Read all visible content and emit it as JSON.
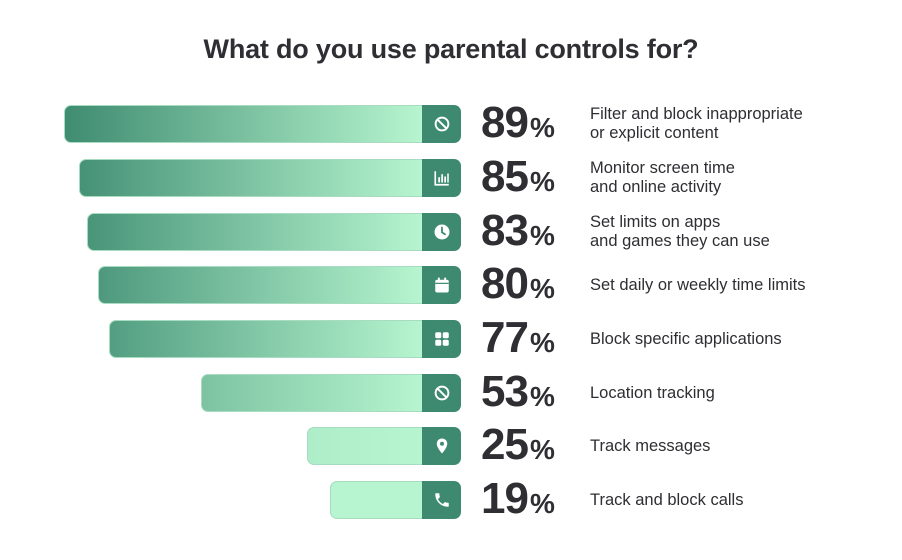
{
  "title": "What do you use parental controls for?",
  "colors": {
    "bar_gradient_start": "#3d8a70",
    "bar_gradient_end": "#b6f5cf",
    "icon_box": "#3d8a70",
    "text": "#2e2e33"
  },
  "chart_data": {
    "type": "bar",
    "orientation": "horizontal",
    "title": "What do you use parental controls for?",
    "unit": "%",
    "categories": [
      [
        "Filter and block inappropriate",
        "or explicit content"
      ],
      [
        "Monitor screen time",
        "and online activity"
      ],
      [
        "Set limits on apps",
        "and games they can use"
      ],
      [
        "Set daily or weekly time limits"
      ],
      [
        "Block specific applications"
      ],
      [
        "Location tracking"
      ],
      [
        "Track messages"
      ],
      [
        "Track and block calls"
      ]
    ],
    "values": [
      89,
      85,
      83,
      80,
      77,
      53,
      25,
      19
    ],
    "icons": [
      "block-icon",
      "bar-chart-icon",
      "clock-icon",
      "calendar-icon",
      "apps-grid-icon",
      "block-icon",
      "location-pin-icon",
      "phone-icon"
    ],
    "grid": false,
    "legend": "none"
  }
}
